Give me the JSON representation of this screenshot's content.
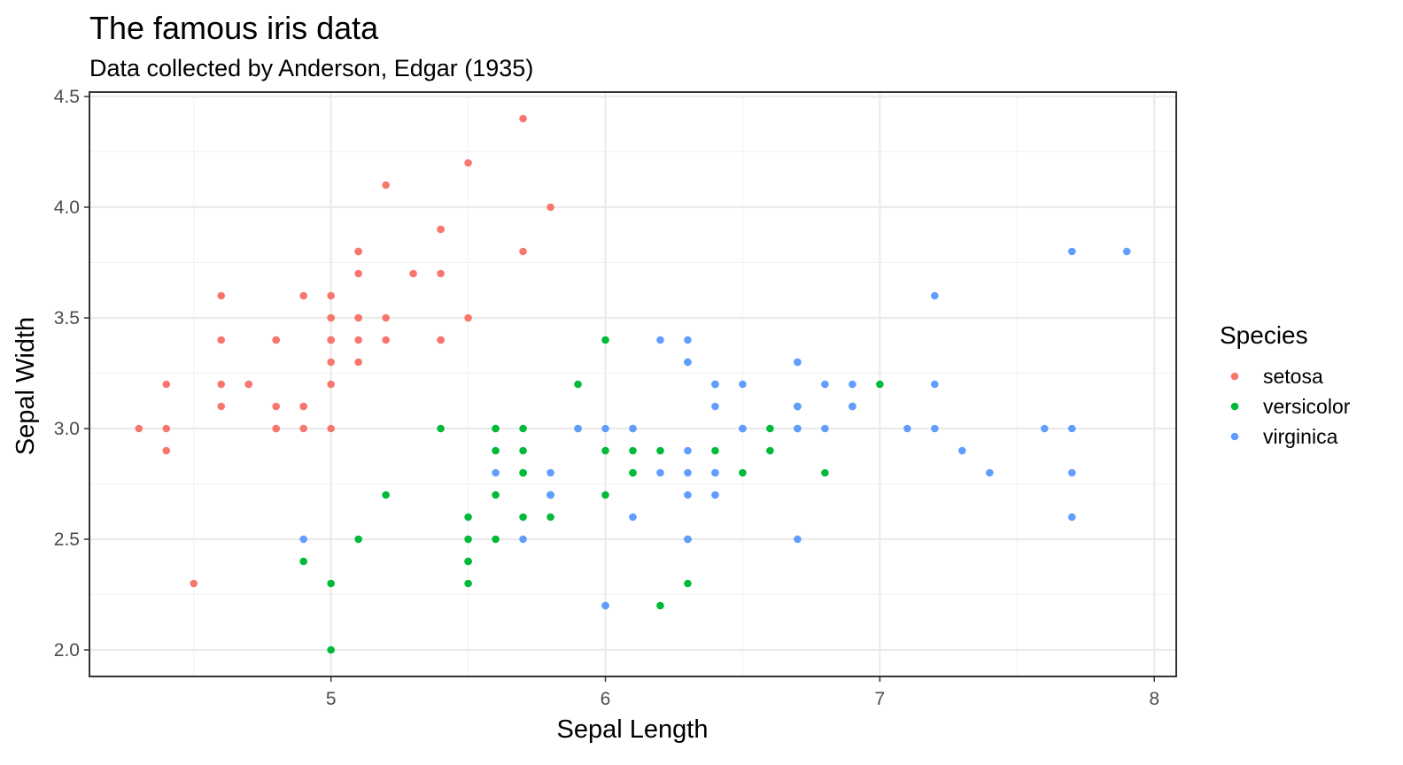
{
  "chart_data": {
    "type": "scatter",
    "title": "The famous iris data",
    "subtitle": "Data collected by Anderson, Edgar (1935)",
    "xlabel": "Sepal Length",
    "ylabel": "Sepal Width",
    "xlim": [
      4.12,
      8.08
    ],
    "ylim": [
      1.88,
      4.52
    ],
    "x_ticks": [
      5,
      6,
      7,
      8
    ],
    "x_tick_labels": [
      "5",
      "6",
      "7",
      "8"
    ],
    "y_ticks": [
      2.0,
      2.5,
      3.0,
      3.5,
      4.0,
      4.5
    ],
    "y_tick_labels": [
      "2.0",
      "2.5",
      "3.0",
      "3.5",
      "4.0",
      "4.5"
    ],
    "grid": true,
    "legend": {
      "title": "Species",
      "position": "right"
    },
    "series": [
      {
        "name": "setosa",
        "color": "#F8766D",
        "points": [
          [
            5.1,
            3.5
          ],
          [
            4.9,
            3.0
          ],
          [
            4.7,
            3.2
          ],
          [
            4.6,
            3.1
          ],
          [
            5.0,
            3.6
          ],
          [
            5.4,
            3.9
          ],
          [
            4.6,
            3.4
          ],
          [
            5.0,
            3.4
          ],
          [
            4.4,
            2.9
          ],
          [
            4.9,
            3.1
          ],
          [
            5.4,
            3.7
          ],
          [
            4.8,
            3.4
          ],
          [
            4.8,
            3.0
          ],
          [
            4.3,
            3.0
          ],
          [
            5.8,
            4.0
          ],
          [
            5.7,
            4.4
          ],
          [
            5.4,
            3.9
          ],
          [
            5.1,
            3.5
          ],
          [
            5.7,
            3.8
          ],
          [
            5.1,
            3.8
          ],
          [
            5.4,
            3.4
          ],
          [
            5.1,
            3.7
          ],
          [
            4.6,
            3.6
          ],
          [
            5.1,
            3.3
          ],
          [
            4.8,
            3.4
          ],
          [
            5.0,
            3.0
          ],
          [
            5.0,
            3.4
          ],
          [
            5.2,
            3.5
          ],
          [
            5.2,
            3.4
          ],
          [
            4.7,
            3.2
          ],
          [
            4.8,
            3.1
          ],
          [
            5.4,
            3.4
          ],
          [
            5.2,
            4.1
          ],
          [
            5.5,
            4.2
          ],
          [
            4.9,
            3.1
          ],
          [
            5.0,
            3.2
          ],
          [
            5.5,
            3.5
          ],
          [
            4.9,
            3.6
          ],
          [
            4.4,
            3.0
          ],
          [
            5.1,
            3.4
          ],
          [
            5.0,
            3.5
          ],
          [
            4.5,
            2.3
          ],
          [
            4.4,
            3.2
          ],
          [
            5.0,
            3.5
          ],
          [
            5.1,
            3.8
          ],
          [
            4.8,
            3.0
          ],
          [
            5.1,
            3.8
          ],
          [
            4.6,
            3.2
          ],
          [
            5.3,
            3.7
          ],
          [
            5.0,
            3.3
          ]
        ]
      },
      {
        "name": "versicolor",
        "color": "#00BA38",
        "points": [
          [
            7.0,
            3.2
          ],
          [
            6.4,
            3.2
          ],
          [
            6.9,
            3.1
          ],
          [
            5.5,
            2.3
          ],
          [
            6.5,
            2.8
          ],
          [
            5.7,
            2.8
          ],
          [
            6.3,
            3.3
          ],
          [
            4.9,
            2.4
          ],
          [
            6.6,
            2.9
          ],
          [
            5.2,
            2.7
          ],
          [
            5.0,
            2.0
          ],
          [
            5.9,
            3.0
          ],
          [
            6.0,
            2.2
          ],
          [
            6.1,
            2.9
          ],
          [
            5.6,
            2.9
          ],
          [
            6.7,
            3.1
          ],
          [
            5.6,
            3.0
          ],
          [
            5.8,
            2.7
          ],
          [
            6.2,
            2.2
          ],
          [
            5.6,
            2.5
          ],
          [
            5.9,
            3.2
          ],
          [
            6.1,
            2.8
          ],
          [
            6.3,
            2.5
          ],
          [
            6.1,
            2.8
          ],
          [
            6.4,
            2.9
          ],
          [
            6.6,
            3.0
          ],
          [
            6.8,
            2.8
          ],
          [
            6.7,
            3.0
          ],
          [
            6.0,
            2.9
          ],
          [
            5.7,
            2.6
          ],
          [
            5.5,
            2.4
          ],
          [
            5.5,
            2.4
          ],
          [
            5.8,
            2.7
          ],
          [
            6.0,
            2.7
          ],
          [
            5.4,
            3.0
          ],
          [
            6.0,
            3.4
          ],
          [
            6.7,
            3.1
          ],
          [
            6.3,
            2.3
          ],
          [
            5.6,
            3.0
          ],
          [
            5.5,
            2.5
          ],
          [
            5.5,
            2.6
          ],
          [
            6.1,
            3.0
          ],
          [
            5.8,
            2.6
          ],
          [
            5.0,
            2.3
          ],
          [
            5.6,
            2.7
          ],
          [
            5.7,
            3.0
          ],
          [
            5.7,
            2.9
          ],
          [
            6.2,
            2.9
          ],
          [
            5.1,
            2.5
          ],
          [
            5.7,
            2.8
          ]
        ]
      },
      {
        "name": "virginica",
        "color": "#619CFF",
        "points": [
          [
            6.3,
            3.3
          ],
          [
            5.8,
            2.7
          ],
          [
            7.1,
            3.0
          ],
          [
            6.3,
            2.9
          ],
          [
            6.5,
            3.0
          ],
          [
            7.6,
            3.0
          ],
          [
            4.9,
            2.5
          ],
          [
            7.3,
            2.9
          ],
          [
            6.7,
            2.5
          ],
          [
            7.2,
            3.6
          ],
          [
            6.5,
            3.2
          ],
          [
            6.4,
            2.7
          ],
          [
            6.8,
            3.0
          ],
          [
            5.7,
            2.5
          ],
          [
            5.8,
            2.8
          ],
          [
            6.4,
            3.2
          ],
          [
            6.5,
            3.0
          ],
          [
            7.7,
            3.8
          ],
          [
            7.7,
            2.6
          ],
          [
            6.0,
            2.2
          ],
          [
            6.9,
            3.2
          ],
          [
            5.6,
            2.8
          ],
          [
            7.7,
            2.8
          ],
          [
            6.3,
            2.7
          ],
          [
            6.7,
            3.3
          ],
          [
            7.2,
            3.2
          ],
          [
            6.2,
            2.8
          ],
          [
            6.1,
            3.0
          ],
          [
            6.4,
            2.8
          ],
          [
            7.2,
            3.0
          ],
          [
            7.4,
            2.8
          ],
          [
            7.9,
            3.8
          ],
          [
            6.4,
            2.8
          ],
          [
            6.3,
            2.8
          ],
          [
            6.1,
            2.6
          ],
          [
            7.7,
            3.0
          ],
          [
            6.3,
            3.4
          ],
          [
            6.4,
            3.1
          ],
          [
            6.0,
            3.0
          ],
          [
            6.9,
            3.1
          ],
          [
            6.7,
            3.1
          ],
          [
            6.9,
            3.1
          ],
          [
            5.8,
            2.7
          ],
          [
            6.8,
            3.2
          ],
          [
            6.7,
            3.3
          ],
          [
            6.7,
            3.0
          ],
          [
            6.3,
            2.5
          ],
          [
            6.5,
            3.0
          ],
          [
            6.2,
            3.4
          ],
          [
            5.9,
            3.0
          ]
        ]
      }
    ]
  }
}
